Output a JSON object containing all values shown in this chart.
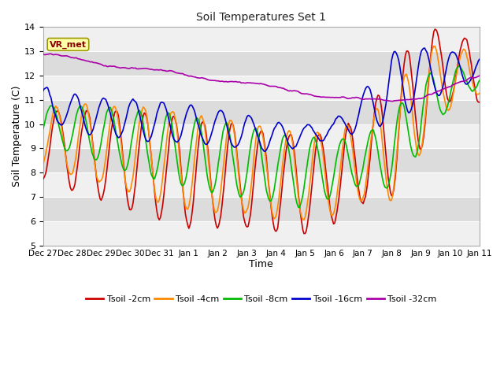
{
  "title": "Soil Temperatures Set 1",
  "xlabel": "Time",
  "ylabel": "Soil Temperature (C)",
  "ylim": [
    5.0,
    14.0
  ],
  "yticks": [
    5.0,
    6.0,
    7.0,
    8.0,
    9.0,
    10.0,
    11.0,
    12.0,
    13.0,
    14.0
  ],
  "x_labels": [
    "Dec 27",
    "Dec 28",
    "Dec 29",
    "Dec 30",
    "Dec 31",
    "Jan 1",
    "Jan 2",
    "Jan 3",
    "Jan 4",
    "Jan 5",
    "Jan 6",
    "Jan 7",
    "Jan 8",
    "Jan 9",
    "Jan 10",
    "Jan 11"
  ],
  "colors": {
    "tsoil_2cm": "#cc0000",
    "tsoil_4cm": "#ff8800",
    "tsoil_8cm": "#00bb00",
    "tsoil_16cm": "#0000cc",
    "tsoil_32cm": "#aa00aa"
  },
  "legend_labels": [
    "Tsoil -2cm",
    "Tsoil -4cm",
    "Tsoil -8cm",
    "Tsoil -16cm",
    "Tsoil -32cm"
  ],
  "fig_bg_color": "#ffffff",
  "plot_bg_color": "#e8e8e8",
  "band_color_light": "#f0f0f0",
  "band_color_dark": "#dcdcdc",
  "grid_color": "#ffffff",
  "n_points": 384
}
